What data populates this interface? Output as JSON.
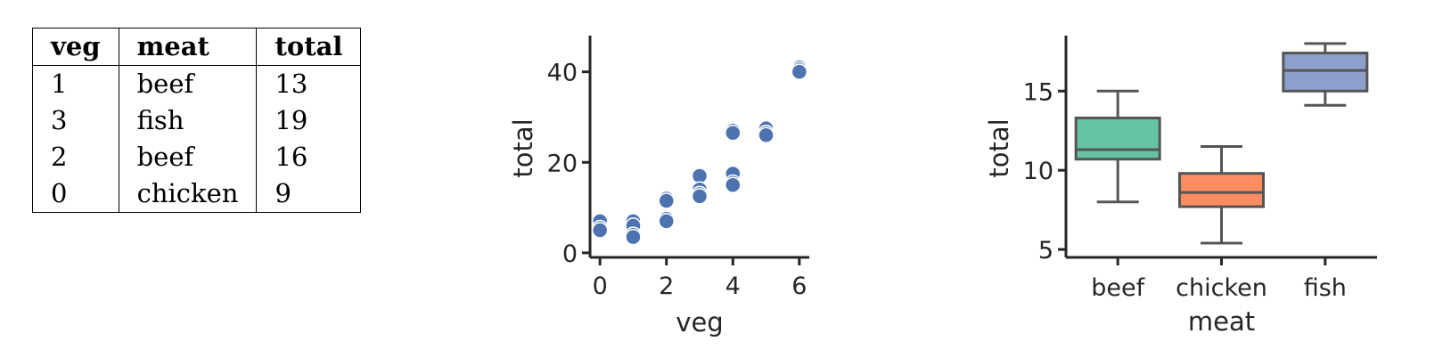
{
  "table": {
    "columns": [
      "veg",
      "meat",
      "total"
    ],
    "rows": [
      [
        "1",
        "beef",
        "13"
      ],
      [
        "3",
        "fish",
        "19"
      ],
      [
        "2",
        "beef",
        "16"
      ],
      [
        "0",
        "chicken",
        "9"
      ]
    ]
  },
  "chart_data": [
    {
      "type": "scatter",
      "xlabel": "veg",
      "ylabel": "total",
      "xlim": [
        -0.3,
        6.3
      ],
      "ylim": [
        -1,
        48
      ],
      "xticks": [
        0,
        2,
        4,
        6
      ],
      "yticks": [
        0,
        20,
        40
      ],
      "color": "#4c72b0",
      "points": [
        [
          0,
          7
        ],
        [
          0,
          5.5
        ],
        [
          0,
          5
        ],
        [
          1,
          7
        ],
        [
          1,
          6
        ],
        [
          1,
          4
        ],
        [
          1,
          3.5
        ],
        [
          2,
          12
        ],
        [
          2,
          11.5
        ],
        [
          2,
          7.5
        ],
        [
          2,
          7
        ],
        [
          3,
          17
        ],
        [
          3,
          14
        ],
        [
          3,
          13
        ],
        [
          3,
          12.5
        ],
        [
          4,
          27
        ],
        [
          4,
          26.5
        ],
        [
          4,
          17.5
        ],
        [
          4,
          15.5
        ],
        [
          4,
          15
        ],
        [
          5,
          27.5
        ],
        [
          5,
          26.5
        ],
        [
          5,
          26
        ],
        [
          6,
          41
        ],
        [
          6,
          40.5
        ],
        [
          6,
          40
        ]
      ]
    },
    {
      "type": "box",
      "xlabel": "meat",
      "ylabel": "total",
      "ylim": [
        4.5,
        18.5
      ],
      "yticks": [
        5,
        10,
        15
      ],
      "categories": [
        "beef",
        "chicken",
        "fish"
      ],
      "colors": [
        "#66c2a5",
        "#fc8d62",
        "#8da0cb"
      ],
      "boxes": [
        {
          "whislo": 8,
          "q1": 10.7,
          "med": 11.3,
          "q3": 13.3,
          "whishi": 15
        },
        {
          "whislo": 5.4,
          "q1": 7.7,
          "med": 8.6,
          "q3": 9.8,
          "whishi": 11.5
        },
        {
          "whislo": 14.1,
          "q1": 15,
          "med": 16.3,
          "q3": 17.4,
          "whishi": 18
        }
      ]
    }
  ]
}
